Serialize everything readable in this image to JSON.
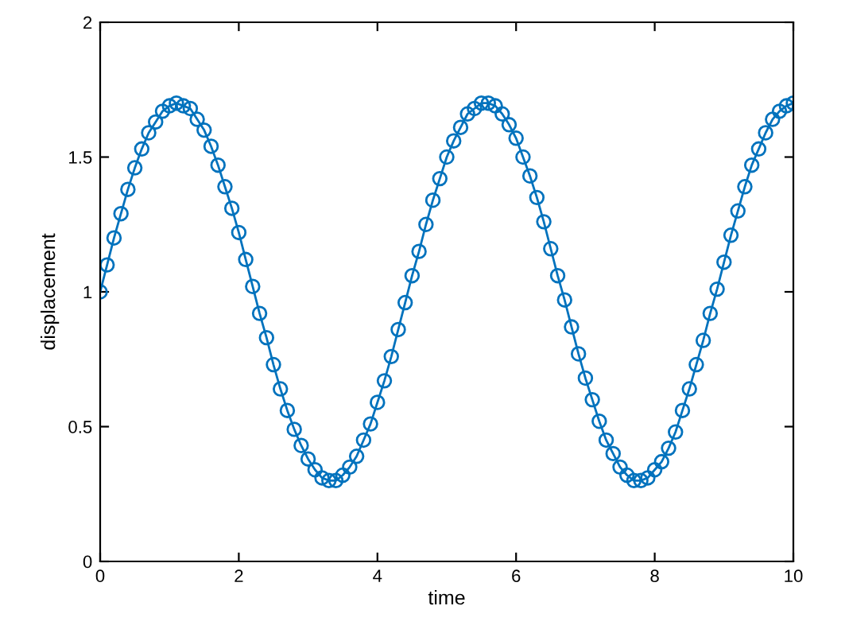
{
  "chart_data": {
    "type": "line",
    "xlabel": "time",
    "ylabel": "displacement",
    "xlim": [
      0,
      10
    ],
    "ylim": [
      0,
      2
    ],
    "xticks": [
      0,
      2,
      4,
      6,
      8,
      10
    ],
    "yticks": [
      0,
      0.5,
      1,
      1.5,
      2
    ],
    "grid": false,
    "marker": "circle",
    "line_style": "solid",
    "x": [
      0,
      0.1,
      0.2,
      0.3,
      0.4,
      0.5,
      0.6,
      0.7,
      0.8,
      0.9,
      1,
      1.1,
      1.2,
      1.3,
      1.4,
      1.5,
      1.6,
      1.7,
      1.8,
      1.9,
      2,
      2.1,
      2.2,
      2.3,
      2.4,
      2.5,
      2.6,
      2.7,
      2.8,
      2.9,
      3,
      3.1,
      3.2,
      3.3,
      3.4,
      3.5,
      3.6,
      3.7,
      3.8,
      3.9,
      4,
      4.1,
      4.2,
      4.3,
      4.4,
      4.5,
      4.6,
      4.7,
      4.8,
      4.9,
      5,
      5.1,
      5.2,
      5.3,
      5.4,
      5.5,
      5.6,
      5.7,
      5.8,
      5.9,
      6,
      6.1,
      6.2,
      6.3,
      6.4,
      6.5,
      6.6,
      6.7,
      6.8,
      6.9,
      7,
      7.1,
      7.2,
      7.3,
      7.4,
      7.5,
      7.6,
      7.7,
      7.8,
      7.9,
      8,
      8.1,
      8.2,
      8.3,
      8.4,
      8.5,
      8.6,
      8.7,
      8.8,
      8.9,
      9,
      9.1,
      9.2,
      9.3,
      9.4,
      9.5,
      9.6,
      9.7,
      9.8,
      9.9,
      10
    ],
    "series": [
      {
        "color": "#0072bd",
        "values": [
          1.0,
          1.1,
          1.2,
          1.29,
          1.38,
          1.46,
          1.53,
          1.59,
          1.63,
          1.67,
          1.69,
          1.7,
          1.69,
          1.68,
          1.64,
          1.6,
          1.54,
          1.47,
          1.39,
          1.31,
          1.22,
          1.12,
          1.02,
          0.92,
          0.83,
          0.73,
          0.64,
          0.56,
          0.49,
          0.43,
          0.38,
          0.34,
          0.31,
          0.3,
          0.3,
          0.32,
          0.35,
          0.39,
          0.45,
          0.51,
          0.59,
          0.67,
          0.76,
          0.86,
          0.96,
          1.06,
          1.15,
          1.25,
          1.34,
          1.42,
          1.5,
          1.56,
          1.61,
          1.66,
          1.68,
          1.7,
          1.7,
          1.69,
          1.66,
          1.62,
          1.57,
          1.5,
          1.43,
          1.35,
          1.26,
          1.16,
          1.06,
          0.97,
          0.87,
          0.77,
          0.68,
          0.6,
          0.52,
          0.45,
          0.4,
          0.35,
          0.32,
          0.3,
          0.3,
          0.31,
          0.34,
          0.37,
          0.42,
          0.48,
          0.56,
          0.64,
          0.73,
          0.82,
          0.92,
          1.01,
          1.11,
          1.21,
          1.3,
          1.39,
          1.47,
          1.53,
          1.59,
          1.64,
          1.67,
          1.69,
          1.7
        ]
      }
    ]
  }
}
